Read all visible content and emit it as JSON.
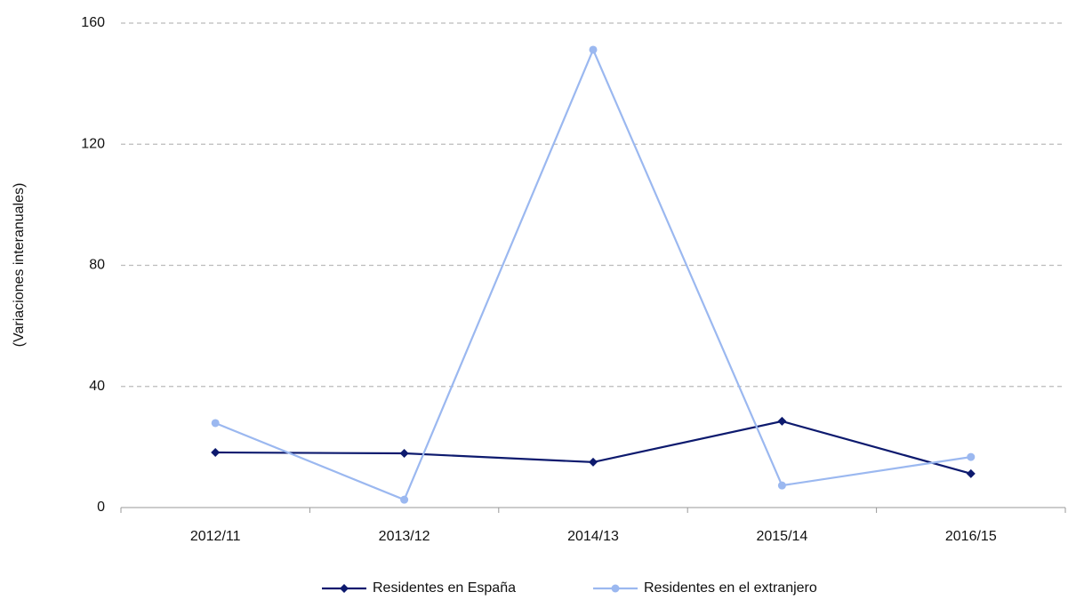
{
  "chart_data": {
    "type": "line",
    "y_axis_label": "(Variaciones interanuales)",
    "categories": [
      "2012/11",
      "2013/12",
      "2014/13",
      "2015/14",
      "2016/15"
    ],
    "series": [
      {
        "name": "Residentes en España",
        "color": "#0d1a6e",
        "marker": "diamond",
        "values": [
          18.2,
          17.9,
          15,
          28.5,
          11.2
        ]
      },
      {
        "name": "Residentes en el extranjero",
        "color": "#9bb8f0",
        "marker": "circle",
        "values": [
          27.9,
          2.6,
          151.2,
          7.3,
          16.7
        ]
      }
    ],
    "ylim": [
      0,
      160
    ],
    "yticks": [
      0,
      40,
      80,
      120,
      160
    ],
    "grid": true,
    "legend": "bottom"
  }
}
